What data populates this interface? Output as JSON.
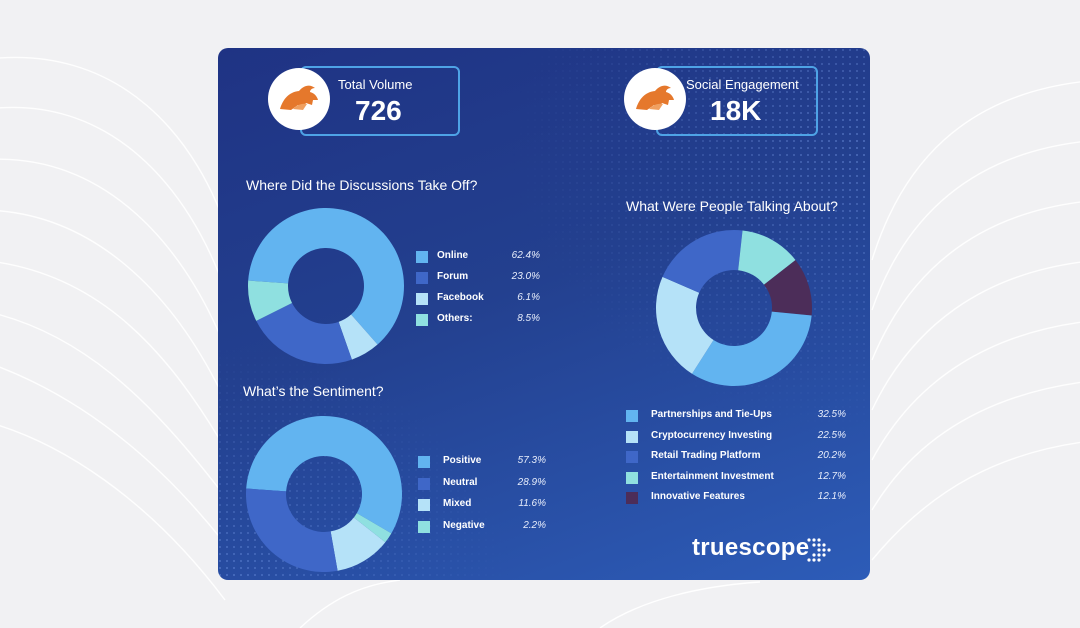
{
  "stats": [
    {
      "label": "Total Volume",
      "value": "726",
      "icon": "bull-logo-icon"
    },
    {
      "label": "Social Engagement",
      "value": "18K",
      "icon": "bull-logo-icon"
    }
  ],
  "colors": {
    "light_blue": "#62b4f0",
    "mid_blue": "#3f67c8",
    "pale_blue": "#b5e2f8",
    "aqua": "#8fe0e0",
    "plum": "#4c2d59",
    "accent_border": "#4ea3e6",
    "logo_orange": "#e5782c"
  },
  "brand": {
    "name": "truescope",
    "icon": "truescope-dots-icon"
  },
  "chart_data": [
    {
      "type": "pie",
      "title": "Where Did the Discussions Take Off?",
      "categories": [
        "Online",
        "Forum",
        "Facebook",
        "Others:"
      ],
      "values": [
        62.4,
        23.0,
        6.1,
        8.5
      ],
      "value_labels": [
        "62.4%",
        "23.0%",
        "6.1%",
        "8.5%"
      ],
      "colors": [
        "#62b4f0",
        "#3f67c8",
        "#b5e2f8",
        "#8fe0e0"
      ],
      "slice_order": [
        0,
        2,
        1,
        3
      ],
      "legend": "right"
    },
    {
      "type": "pie",
      "title": "What’s the Sentiment?",
      "categories": [
        "Positive",
        "Neutral",
        "Mixed",
        "Negative"
      ],
      "values": [
        57.3,
        28.9,
        11.6,
        2.2
      ],
      "value_labels": [
        "57.3%",
        "28.9%",
        "11.6%",
        "2.2%"
      ],
      "colors": [
        "#62b4f0",
        "#3f67c8",
        "#b5e2f8",
        "#8fe0e0"
      ],
      "slice_order": [
        0,
        3,
        2,
        1
      ],
      "legend": "right"
    },
    {
      "type": "pie",
      "title": "What Were People Talking About?",
      "categories": [
        "Partnerships and Tie-Ups",
        "Cryptocurrency Investing",
        "Retail Trading Platform",
        "Entertainment Investment",
        "Innovative Features"
      ],
      "values": [
        32.5,
        22.5,
        20.2,
        12.7,
        12.1
      ],
      "value_labels": [
        "32.5%",
        "22.5%",
        "20.2%",
        "12.7%",
        "12.1%"
      ],
      "colors": [
        "#62b4f0",
        "#b5e2f8",
        "#3f67c8",
        "#8fe0e0",
        "#4c2d59"
      ],
      "slice_order": [
        4,
        0,
        1,
        2,
        3
      ],
      "legend": "bottom"
    }
  ]
}
